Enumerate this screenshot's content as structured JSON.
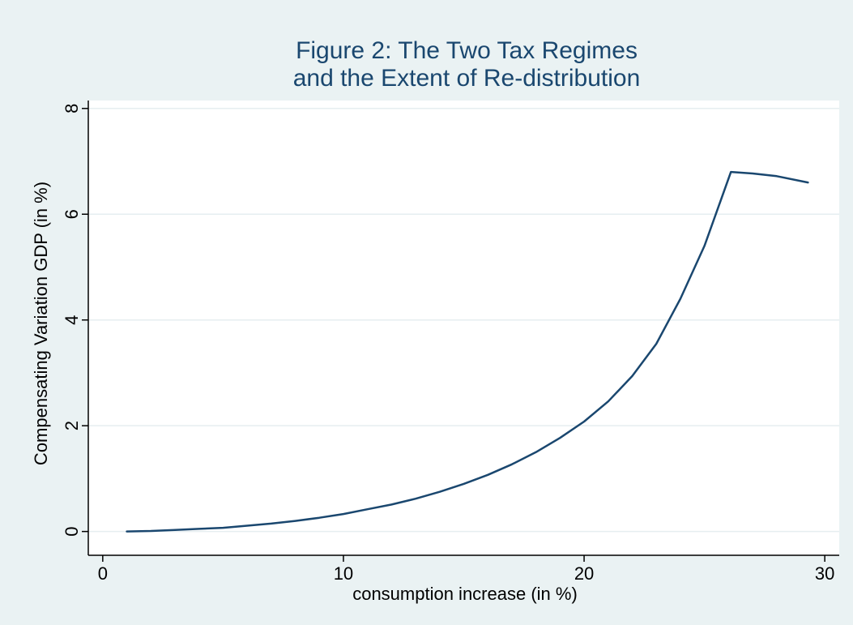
{
  "colors": {
    "outer_background": "#eaf2f3",
    "plot_background": "#ffffff",
    "title": "#1a476f",
    "line": "#1a476f",
    "grid": "#e6eef0",
    "axis": "#000000"
  },
  "chart_data": {
    "type": "line",
    "title": [
      "Figure 2: The Two Tax Regimes",
      "and the Extent of Re-distribution"
    ],
    "xlabel": "consumption increase (in %)",
    "ylabel": "Compensating Variation GDP (in %)",
    "xlim": [
      -0.6,
      30.6
    ],
    "ylim": [
      -0.45,
      8.15
    ],
    "x_ticks": [
      0,
      10,
      20,
      30
    ],
    "y_ticks": [
      0,
      2,
      4,
      6,
      8
    ],
    "grid": "horizontal",
    "legend": "none",
    "series": [
      {
        "x": [
          1,
          2,
          3,
          4,
          5,
          6,
          7,
          8,
          9,
          10,
          11,
          12,
          13,
          14,
          15,
          16,
          17,
          18,
          19,
          20,
          21,
          22,
          23,
          24,
          25,
          26.1,
          27,
          28,
          29.3
        ],
        "y": [
          0,
          0.01,
          0.03,
          0.05,
          0.07,
          0.11,
          0.15,
          0.2,
          0.26,
          0.33,
          0.42,
          0.51,
          0.62,
          0.75,
          0.9,
          1.07,
          1.27,
          1.5,
          1.77,
          2.08,
          2.46,
          2.94,
          3.55,
          4.4,
          5.4,
          6.8,
          6.77,
          6.72,
          6.6
        ]
      }
    ]
  }
}
